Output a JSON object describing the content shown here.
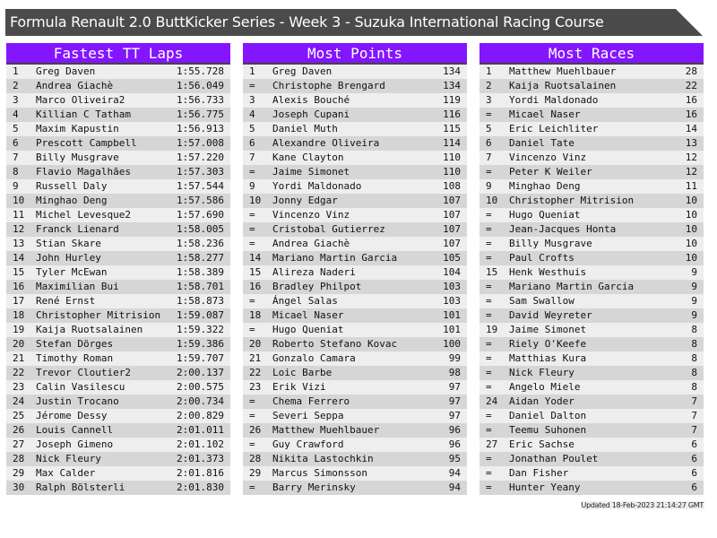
{
  "title": "Formula Renault 2.0 ButtKicker Series - Week 3 - Suzuka International Racing Course",
  "updated": "Updated 18-Feb-2023 21:14:27 GMT",
  "colors": {
    "header": "#8316ff",
    "title_bar": "#4b4b4b"
  },
  "tables": [
    {
      "heading": "Fastest TT Laps",
      "rows": [
        [
          "1",
          "Greg Daven",
          "1:55.728"
        ],
        [
          "2",
          "Andrea Giachè",
          "1:56.049"
        ],
        [
          "3",
          "Marco Oliveira2",
          "1:56.733"
        ],
        [
          "4",
          "Killian C Tatham",
          "1:56.775"
        ],
        [
          "5",
          "Maxim Kapustin",
          "1:56.913"
        ],
        [
          "6",
          "Prescott Campbell",
          "1:57.008"
        ],
        [
          "7",
          "Billy Musgrave",
          "1:57.220"
        ],
        [
          "8",
          "Flavio Magalhães",
          "1:57.303"
        ],
        [
          "9",
          "Russell Daly",
          "1:57.544"
        ],
        [
          "10",
          "Minghao Deng",
          "1:57.586"
        ],
        [
          "11",
          "Michel Levesque2",
          "1:57.690"
        ],
        [
          "12",
          "Franck Lienard",
          "1:58.005"
        ],
        [
          "13",
          "Stian Skare",
          "1:58.236"
        ],
        [
          "14",
          "John Hurley",
          "1:58.277"
        ],
        [
          "15",
          "Tyler McEwan",
          "1:58.389"
        ],
        [
          "16",
          "Maximilian Bui",
          "1:58.701"
        ],
        [
          "17",
          "René Ernst",
          "1:58.873"
        ],
        [
          "18",
          "Christopher Mitrision",
          "1:59.087"
        ],
        [
          "19",
          "Kaija Ruotsalainen",
          "1:59.322"
        ],
        [
          "20",
          "Stefan Dörges",
          "1:59.386"
        ],
        [
          "21",
          "Timothy Roman",
          "1:59.707"
        ],
        [
          "22",
          "Trevor Cloutier2",
          "2:00.137"
        ],
        [
          "23",
          "Calin Vasilescu",
          "2:00.575"
        ],
        [
          "24",
          "Justin Trocano",
          "2:00.734"
        ],
        [
          "25",
          "Jérome Dessy",
          "2:00.829"
        ],
        [
          "26",
          "Louis Cannell",
          "2:01.011"
        ],
        [
          "27",
          "Joseph Gimeno",
          "2:01.102"
        ],
        [
          "28",
          "Nick Fleury",
          "2:01.373"
        ],
        [
          "29",
          "Max Calder",
          "2:01.816"
        ],
        [
          "30",
          "Ralph Bölsterli",
          "2:01.830"
        ]
      ]
    },
    {
      "heading": "Most Points",
      "rows": [
        [
          "1",
          "Greg Daven",
          "134"
        ],
        [
          "=",
          "Christophe Brengard",
          "134"
        ],
        [
          "3",
          "Alexis Bouché",
          "119"
        ],
        [
          "4",
          "Joseph Cupani",
          "116"
        ],
        [
          "5",
          "Daniel Muth",
          "115"
        ],
        [
          "6",
          "Alexandre Oliveira",
          "114"
        ],
        [
          "7",
          "Kane Clayton",
          "110"
        ],
        [
          "=",
          "Jaime Simonet",
          "110"
        ],
        [
          "9",
          "Yordi Maldonado",
          "108"
        ],
        [
          "10",
          "Jonny Edgar",
          "107"
        ],
        [
          "=",
          "Vincenzo Vinz",
          "107"
        ],
        [
          "=",
          "Cristobal Gutierrez",
          "107"
        ],
        [
          "=",
          "Andrea Giachè",
          "107"
        ],
        [
          "14",
          "Mariano Martin Garcia",
          "105"
        ],
        [
          "15",
          "Alireza Naderi",
          "104"
        ],
        [
          "16",
          "Bradley Philpot",
          "103"
        ],
        [
          "=",
          "Ángel Salas",
          "103"
        ],
        [
          "18",
          "Micael Naser",
          "101"
        ],
        [
          "=",
          "Hugo Queniat",
          "101"
        ],
        [
          "20",
          "Roberto Stefano Kovac",
          "100"
        ],
        [
          "21",
          "Gonzalo Camara",
          "99"
        ],
        [
          "22",
          "Loic Barbe",
          "98"
        ],
        [
          "23",
          "Erik Vizi",
          "97"
        ],
        [
          "=",
          "Chema Ferrero",
          "97"
        ],
        [
          "=",
          "Severi Seppa",
          "97"
        ],
        [
          "26",
          "Matthew Muehlbauer",
          "96"
        ],
        [
          "=",
          "Guy Crawford",
          "96"
        ],
        [
          "28",
          "Nikita Lastochkin",
          "95"
        ],
        [
          "29",
          "Marcus Simonsson",
          "94"
        ],
        [
          "=",
          "Barry Merinsky",
          "94"
        ]
      ]
    },
    {
      "heading": "Most Races",
      "rows": [
        [
          "1",
          "Matthew Muehlbauer",
          "28"
        ],
        [
          "2",
          "Kaija Ruotsalainen",
          "22"
        ],
        [
          "3",
          "Yordi Maldonado",
          "16"
        ],
        [
          "=",
          "Micael Naser",
          "16"
        ],
        [
          "5",
          "Eric Leichliter",
          "14"
        ],
        [
          "6",
          "Daniel Tate",
          "13"
        ],
        [
          "7",
          "Vincenzo Vinz",
          "12"
        ],
        [
          "=",
          "Peter K Weiler",
          "12"
        ],
        [
          "9",
          "Minghao Deng",
          "11"
        ],
        [
          "10",
          "Christopher Mitrision",
          "10"
        ],
        [
          "=",
          "Hugo Queniat",
          "10"
        ],
        [
          "=",
          "Jean-Jacques Honta",
          "10"
        ],
        [
          "=",
          "Billy Musgrave",
          "10"
        ],
        [
          "=",
          "Paul Crofts",
          "10"
        ],
        [
          "15",
          "Henk Westhuis",
          "9"
        ],
        [
          "=",
          "Mariano Martin Garcia",
          "9"
        ],
        [
          "=",
          "Sam Swallow",
          "9"
        ],
        [
          "=",
          "David Weyreter",
          "9"
        ],
        [
          "19",
          "Jaime Simonet",
          "8"
        ],
        [
          "=",
          "Riely O'Keefe",
          "8"
        ],
        [
          "=",
          "Matthias Kura",
          "8"
        ],
        [
          "=",
          "Nick Fleury",
          "8"
        ],
        [
          "=",
          "Angelo Miele",
          "8"
        ],
        [
          "24",
          "Aidan Yoder",
          "7"
        ],
        [
          "=",
          "Daniel Dalton",
          "7"
        ],
        [
          "=",
          "Teemu Suhonen",
          "7"
        ],
        [
          "27",
          "Eric Sachse",
          "6"
        ],
        [
          "=",
          "Jonathan Poulet",
          "6"
        ],
        [
          "=",
          "Dan Fisher",
          "6"
        ],
        [
          "=",
          "Hunter Yeany",
          "6"
        ]
      ]
    }
  ]
}
